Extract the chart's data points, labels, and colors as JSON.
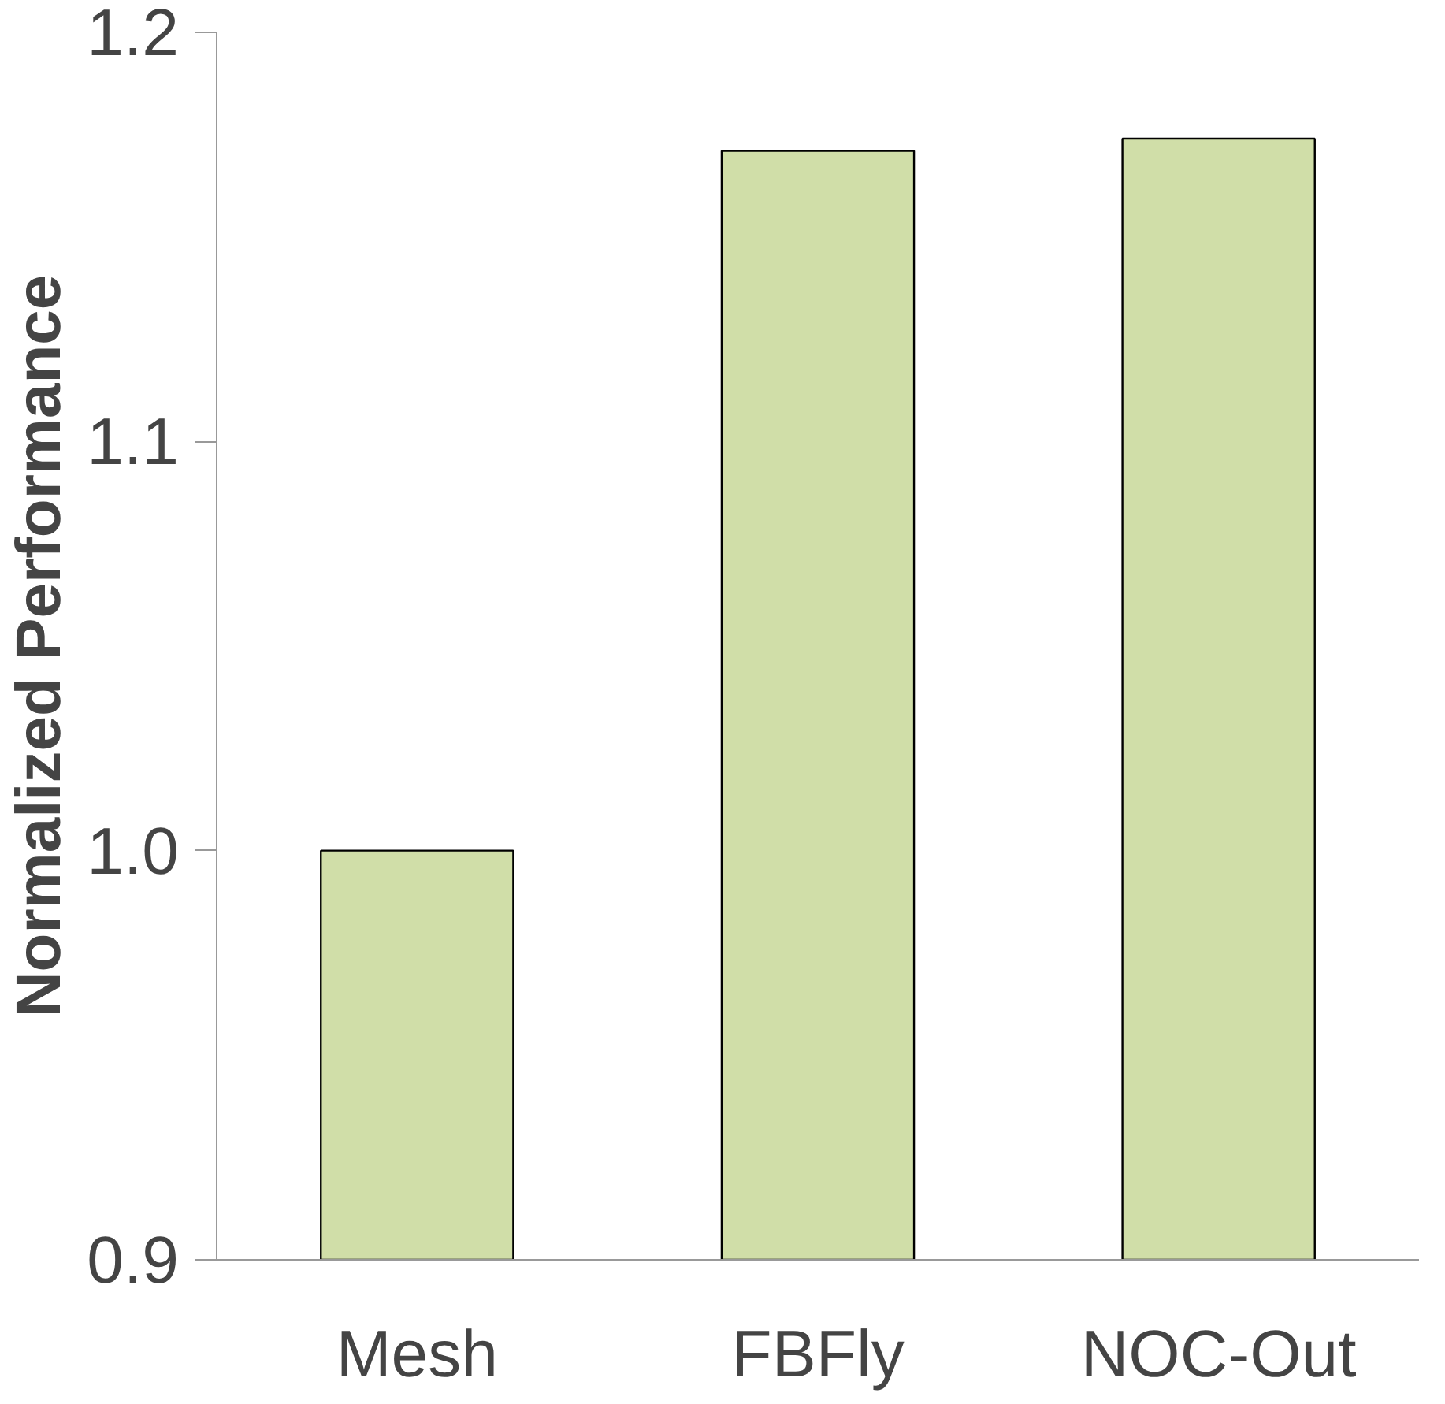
{
  "chart_data": {
    "type": "bar",
    "ylabel": "Normalized Performance",
    "categories": [
      "Mesh",
      "FBFly",
      "NOC-Out"
    ],
    "values": [
      1.0,
      1.171,
      1.174
    ],
    "color": "#d0dea8",
    "ylim": [
      0.9,
      1.2
    ],
    "yticks": [
      {
        "value": 0.9,
        "label": "0.9"
      },
      {
        "value": 1.0,
        "label": "1.0"
      },
      {
        "value": 1.1,
        "label": "1.1"
      },
      {
        "value": 1.2,
        "label": "1.2"
      }
    ],
    "grid": false
  }
}
